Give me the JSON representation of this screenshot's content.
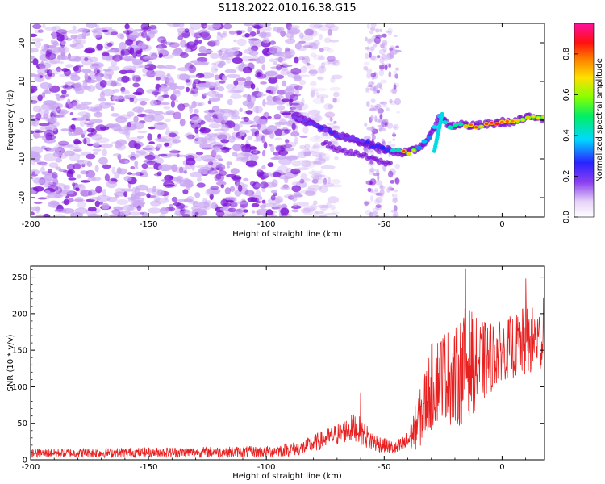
{
  "figure": {
    "title": "S118.2022.010.16.38.G15"
  },
  "colors": {
    "snr_line": "#e82020",
    "spectro_purple": "#7a12d6",
    "background": "#ffffff"
  },
  "chart_data": [
    {
      "type": "heatmap",
      "title": "S118.2022.010.16.38.G15",
      "xlabel": "Height of straight line (km)",
      "ylabel": "Frequency (Hz)",
      "xlim": [
        -200,
        18
      ],
      "ylim": [
        -25,
        25
      ],
      "x_ticks": [
        "-200",
        "-150",
        "-100",
        "-50",
        "0"
      ],
      "y_ticks": [
        "-20",
        "-10",
        "0",
        "10",
        "20"
      ],
      "colorbar": {
        "label": "Normalized spectral amplitude",
        "range": [
          0,
          0.95
        ],
        "ticks": [
          "0.0",
          "0.2",
          "0.4",
          "0.6",
          "0.8"
        ],
        "colormap": "rainbow (white-purple-blue-cyan-green-yellow-red-magenta)"
      },
      "noise_region": {
        "x": [
          -200,
          -85
        ],
        "freq": [
          -25,
          25
        ],
        "amplitude": 0.1
      },
      "signal_trace": {
        "x": [
          -88,
          -80,
          -70,
          -60,
          -50,
          -45,
          -40,
          -35,
          -30,
          -27,
          -22,
          -18,
          -12,
          -5,
          0,
          5,
          10,
          15,
          18
        ],
        "frequency": [
          1,
          -1,
          -4,
          -5.5,
          -7.5,
          -8,
          -8.5,
          -7,
          -4,
          1,
          -1.5,
          -1,
          -1.5,
          -1,
          -0.5,
          -0.5,
          0.5,
          1,
          0.5
        ],
        "amplitude": [
          0.2,
          0.25,
          0.25,
          0.25,
          0.3,
          0.5,
          0.85,
          0.4,
          0.4,
          0.5,
          0.45,
          0.6,
          0.75,
          0.8,
          0.85,
          0.8,
          0.75,
          0.7,
          0.6
        ]
      }
    },
    {
      "type": "line",
      "title": "",
      "xlabel": "Height of straight line (km)",
      "ylabel": "SNR (10 * v/v)",
      "xlim": [
        -200,
        18
      ],
      "ylim": [
        0,
        265
      ],
      "x_ticks": [
        "-200",
        "-150",
        "-100",
        "-50",
        "0"
      ],
      "y_ticks": [
        "0",
        "50",
        "100",
        "150",
        "200",
        "250"
      ],
      "series": [
        {
          "color": "#e82020",
          "envelope_x": [
            -200,
            -150,
            -100,
            -85,
            -70,
            -62,
            -55,
            -50,
            -45,
            -40,
            -35,
            -30,
            -25,
            -20,
            -15,
            -10,
            -5,
            0,
            5,
            10,
            15,
            18
          ],
          "envelope_mean": [
            9,
            10,
            11,
            16,
            35,
            45,
            25,
            20,
            15,
            25,
            55,
            100,
            120,
            110,
            135,
            130,
            140,
            150,
            155,
            160,
            165,
            160
          ],
          "envelope_amplitude": [
            6,
            7,
            8,
            10,
            15,
            20,
            15,
            10,
            10,
            15,
            40,
            60,
            60,
            70,
            80,
            60,
            50,
            40,
            45,
            50,
            45,
            40
          ],
          "peaks": [
            {
              "x": -15.5,
              "y": 262
            },
            {
              "x": 10,
              "y": 248
            },
            {
              "x": 17.5,
              "y": 222
            },
            {
              "x": -60,
              "y": 92
            }
          ]
        }
      ]
    }
  ]
}
